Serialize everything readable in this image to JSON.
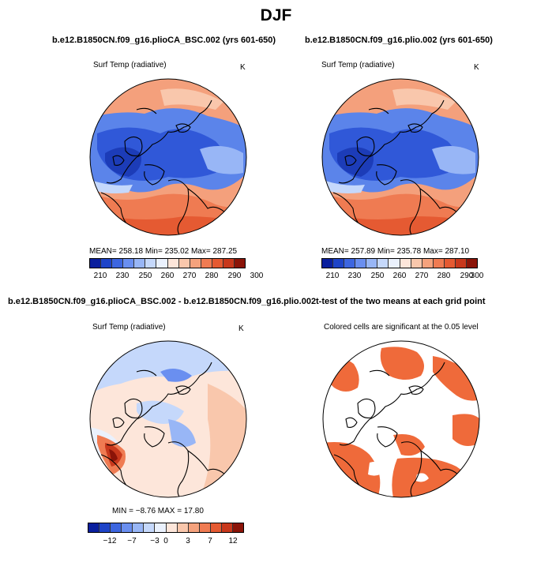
{
  "main_title": "DJF",
  "panels": [
    {
      "title": "b.e12.B1850CN.f09_g16.plioCA_BSC.002 (yrs 601-650)",
      "var": "Surf Temp (radiative)",
      "unit": "K",
      "stats": "MEAN=  258.18    Min=  235.02    Max=  287.25"
    },
    {
      "title": "b.e12.B1850CN.f09_g16.plio.002 (yrs 601-650)",
      "var": "Surf Temp (radiative)",
      "unit": "K",
      "stats": "MEAN=  257.89    Min=  235.78    Max=  287.10"
    },
    {
      "title": "b.e12.B1850CN.f09_g16.plioCA_BSC.002 - b.e12.B1850CN.f09_g16.plio.002",
      "var": "Surf Temp (radiative)",
      "unit": "K",
      "stats": "MIN  =   −8.76  MAX  =   17.80"
    },
    {
      "title": "t-test of the two means at each grid point",
      "var": "Colored cells are significant at the 0.05 level"
    }
  ],
  "colorbar_abs": {
    "colors": [
      "#0a1f9e",
      "#1e44c8",
      "#3d66e0",
      "#6a8ff0",
      "#98b6f6",
      "#c5d8fb",
      "#eaf1fd",
      "#fde6da",
      "#f9c7ac",
      "#f5a27d",
      "#ef7b52",
      "#e55a32",
      "#c8381c",
      "#8b1408"
    ],
    "ticks": [
      "210",
      "230",
      "250",
      "260",
      "270",
      "280",
      "290",
      "300"
    ]
  },
  "colorbar_diff": {
    "colors": [
      "#0a1f9e",
      "#1e44c8",
      "#3d66e0",
      "#6a8ff0",
      "#98b6f6",
      "#c5d8fb",
      "#eaf1fd",
      "#fde6da",
      "#f9c7ac",
      "#f5a27d",
      "#ef7b52",
      "#e55a32",
      "#c8381c",
      "#8b1408"
    ],
    "ticks": [
      "−12",
      "−7",
      "−3",
      "0",
      "3",
      "7",
      "12"
    ]
  }
}
